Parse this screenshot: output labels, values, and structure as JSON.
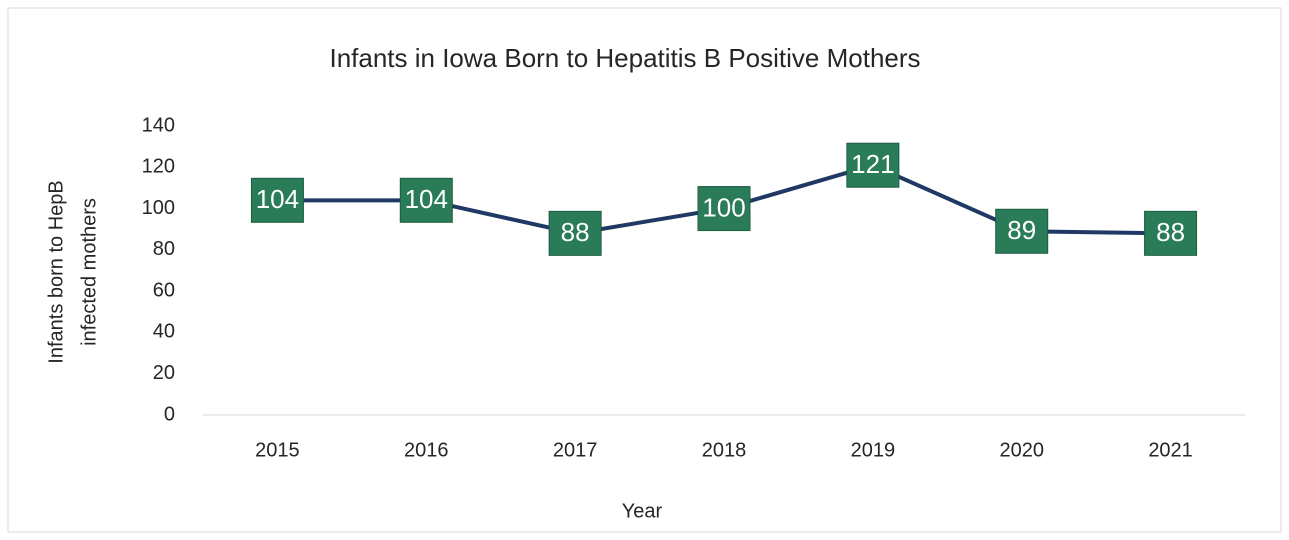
{
  "chart_data": {
    "type": "line",
    "title": "Infants in Iowa Born to Hepatitis B Positive Mothers",
    "x_label": "Year",
    "y_label": [
      "Infants born to HepB",
      "infected mothers"
    ],
    "categories": [
      "2015",
      "2016",
      "2017",
      "2018",
      "2019",
      "2020",
      "2021"
    ],
    "series": [
      {
        "name": "Infants",
        "color": "#1f3864",
        "values": [
          104,
          104,
          88,
          100,
          121,
          89,
          88
        ]
      }
    ],
    "label_color": "#2a7b57",
    "ylim": [
      0,
      140
    ],
    "yticks": [
      0,
      20,
      40,
      60,
      80,
      100,
      120,
      140
    ],
    "grid": false
  }
}
